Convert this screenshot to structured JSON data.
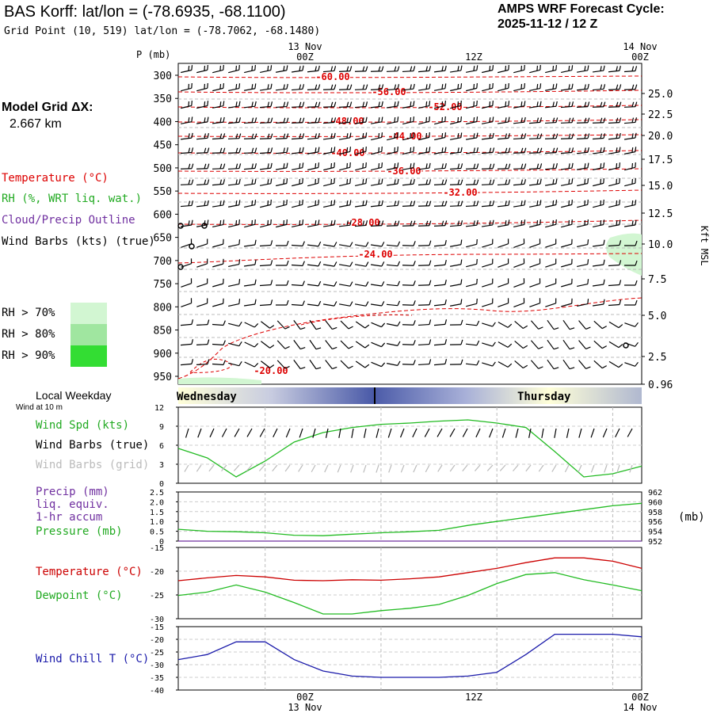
{
  "header": {
    "station": "BAS Korff:  lat/lon = (-78.6935, -68.1100)",
    "gridpoint": "Grid Point (10, 519) lat/lon = (-78.7062, -68.1480)",
    "cycle_title": "AMPS WRF Forecast Cycle:",
    "cycle_value": "2025-11-12 / 12  Z",
    "model_grid_title": "Model Grid ΔX:",
    "model_grid_value": "2.667 km"
  },
  "time_axis": {
    "top_dates": [
      "13 Nov",
      "14 Nov"
    ],
    "top_ticks": [
      "00Z",
      "12Z",
      "00Z"
    ],
    "bottom_ticks": [
      "00Z",
      "12Z",
      "00Z"
    ],
    "bottom_dates": [
      "13 Nov",
      "14 Nov"
    ]
  },
  "legend": {
    "temperature": "Temperature (°C)",
    "rh": "RH (%, WRT liq. wat.)",
    "cloud": "Cloud/Precip Outline",
    "barbs": "Wind Barbs (kts) (true)",
    "rh70": "RH > 70%",
    "rh80": "RH > 80%",
    "rh90": "RH > 90%",
    "colors": {
      "temperature": "#dd0000",
      "rh": "#22aa22",
      "cloud": "#7030a0",
      "rh70": "#d2f6d2",
      "rh80": "#a0e6a0",
      "rh90": "#33dd33"
    }
  },
  "weekday": {
    "title": "Local Weekday",
    "subtitle": "Wind at 10 m",
    "days": [
      "Wednesday",
      "Thursday"
    ]
  },
  "panels_labels": {
    "wind_spd": "Wind Spd (kts)",
    "wind_barbs_true": "Wind Barbs (true)",
    "wind_barbs_grid": "Wind Barbs (grid)",
    "precip1": "Precip (mm)",
    "precip2": "liq. equiv.",
    "precip3": "1-hr accum",
    "pressure": "Pressure (mb)",
    "pressure_unit": "(mb)",
    "temperature": "Temperature (°C)",
    "dewpoint": "Dewpoint (°C)",
    "windchill": "Wind Chill T (°C)"
  },
  "chart_data": [
    {
      "type": "time-height cross section",
      "ylabel": "P (mb)",
      "ylabel_right": "Kft MSL",
      "pressure_ticks": [
        "300",
        "350",
        "400",
        "450",
        "500",
        "550",
        "600",
        "650",
        "700",
        "750",
        "800",
        "850",
        "900",
        "950"
      ],
      "kft_ticks": [
        "25.0",
        "22.5",
        "20.0",
        "17.5",
        "15.0",
        "12.5",
        "10.0",
        "7.5",
        "5.0",
        "2.5",
        "0.96"
      ],
      "temperature_contours": [
        {
          "value": -60,
          "label": "-60.00"
        },
        {
          "value": -56,
          "label": "-56.00"
        },
        {
          "value": -52,
          "label": "-52.00"
        },
        {
          "value": -48,
          "label": "-48.00"
        },
        {
          "value": -44,
          "label": "-44.00"
        },
        {
          "value": -40,
          "label": "-40.00"
        },
        {
          "value": -36,
          "label": "-36.00"
        },
        {
          "value": -32,
          "label": "-32.00"
        },
        {
          "value": -28,
          "label": "-28.00"
        },
        {
          "value": -24,
          "label": "-24.00"
        },
        {
          "value": -20,
          "label": "-20.00"
        }
      ]
    },
    {
      "type": "line",
      "name": "wind_speed",
      "ylim": [
        0,
        12
      ],
      "yticks": [
        "0",
        "3",
        "6",
        "9",
        "12"
      ],
      "x_hours": [
        0,
        3,
        6,
        9,
        12,
        15,
        18,
        21,
        24,
        27,
        30,
        33,
        36,
        39,
        42,
        45,
        48
      ],
      "series": [
        {
          "name": "Wind Spd (kts)",
          "color": "#22bb22",
          "values": [
            5.5,
            4.0,
            1.0,
            3.5,
            6.5,
            8.0,
            8.8,
            9.3,
            9.5,
            9.8,
            10.0,
            9.5,
            8.8,
            5.0,
            1.0,
            1.5,
            2.7
          ]
        }
      ]
    },
    {
      "type": "line",
      "name": "precip_pressure",
      "ylim": [
        0,
        2.5
      ],
      "yticks": [
        "0",
        "0.5",
        "1.0",
        "1.5",
        "2.0",
        "2.5"
      ],
      "y2lim": [
        952,
        962
      ],
      "y2ticks": [
        "952",
        "954",
        "956",
        "958",
        "960",
        "962"
      ],
      "x_hours": [
        0,
        3,
        6,
        9,
        12,
        15,
        18,
        21,
        24,
        27,
        30,
        33,
        36,
        39,
        42,
        45,
        48
      ],
      "series": [
        {
          "name": "Precip (mm)",
          "color": "#7030a0",
          "values": [
            0,
            0,
            0,
            0,
            0,
            0,
            0,
            0,
            0,
            0,
            0,
            0,
            0,
            0,
            0,
            0,
            0
          ]
        },
        {
          "name": "Pressure (mb)",
          "color": "#22bb22",
          "values": [
            954.4,
            954.0,
            953.9,
            953.7,
            953.2,
            953.1,
            953.4,
            953.7,
            953.9,
            954.2,
            955.2,
            956.0,
            956.8,
            957.6,
            958.4,
            959.2,
            959.7
          ]
        }
      ]
    },
    {
      "type": "line",
      "name": "temperature_dewpoint",
      "ylim": [
        -30,
        -15
      ],
      "yticks": [
        "-15",
        "-20",
        "-25",
        "-30"
      ],
      "x_hours": [
        0,
        3,
        6,
        9,
        12,
        15,
        18,
        21,
        24,
        27,
        30,
        33,
        36,
        39,
        42,
        45,
        48
      ],
      "series": [
        {
          "name": "Temperature (°C)",
          "color": "#cc0000",
          "values": [
            -22.0,
            -21.4,
            -20.9,
            -21.2,
            -21.9,
            -22.0,
            -21.8,
            -21.9,
            -21.6,
            -21.2,
            -20.3,
            -19.4,
            -18.2,
            -17.2,
            -17.2,
            -17.9,
            -19.4
          ]
        },
        {
          "name": "Dewpoint (°C)",
          "color": "#22bb22",
          "values": [
            -25.1,
            -24.4,
            -22.9,
            -24.4,
            -26.6,
            -29.0,
            -29.0,
            -28.3,
            -27.8,
            -27.0,
            -25.1,
            -22.6,
            -20.7,
            -20.3,
            -21.8,
            -22.9,
            -24.1
          ]
        }
      ]
    },
    {
      "type": "line",
      "name": "wind_chill",
      "ylim": [
        -40,
        -15
      ],
      "yticks": [
        "-15",
        "-20",
        "-25",
        "-30",
        "-35",
        "-40"
      ],
      "x_hours": [
        0,
        3,
        6,
        9,
        12,
        15,
        18,
        21,
        24,
        27,
        30,
        33,
        36,
        39,
        42,
        45,
        48
      ],
      "series": [
        {
          "name": "Wind Chill T (°C)",
          "color": "#1a1aaa",
          "values": [
            -28.0,
            -26.0,
            -21.0,
            -21.0,
            -28.0,
            -32.5,
            -34.5,
            -35.0,
            -35.0,
            -35.0,
            -34.5,
            -33.0,
            -26.0,
            -18.0,
            -18.0,
            -18.0,
            -19.0
          ]
        }
      ]
    }
  ]
}
